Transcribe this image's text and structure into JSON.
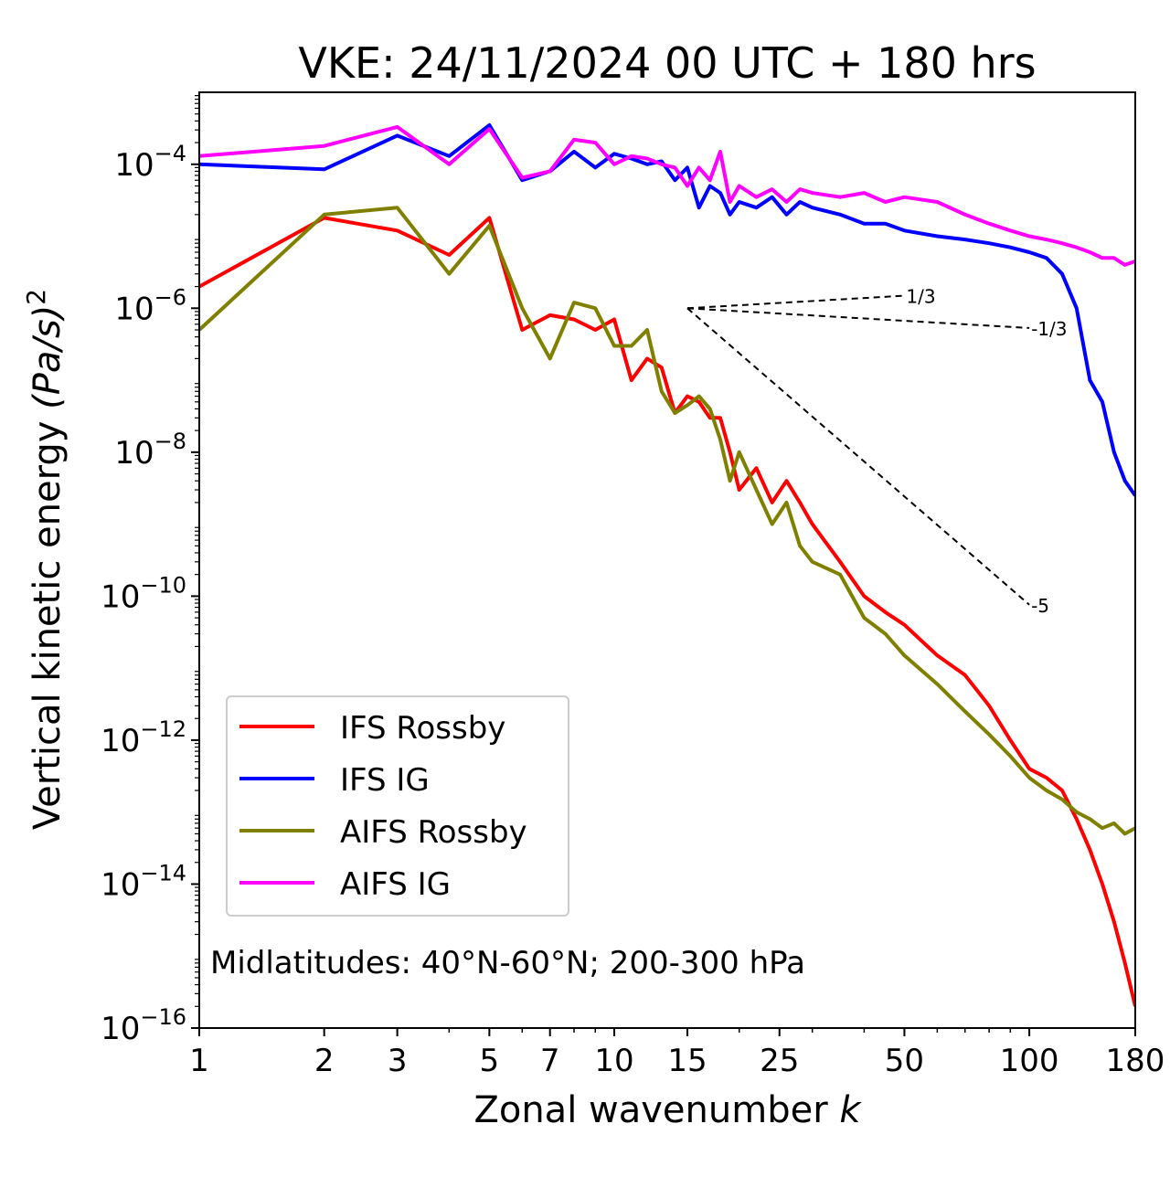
{
  "chart_data": {
    "type": "line",
    "title": "VKE: 24/11/2024 00 UTC + 180 hrs",
    "xlabel": "Zonal wavenumber",
    "xlabel_var": "k",
    "ylabel": "Vertical kinetic energy",
    "ylabel_unit": "(Pa/s)",
    "ylabel_exp": "2",
    "x_scale": "log",
    "y_scale": "log",
    "xlim": [
      1,
      180
    ],
    "ylim": [
      1e-16,
      0.001
    ],
    "x_ticks": [
      1,
      2,
      3,
      5,
      7,
      10,
      15,
      25,
      50,
      100,
      180
    ],
    "y_ticks": [
      {
        "value": 1e-16,
        "base": "10",
        "exp": "−16"
      },
      {
        "value": 1e-14,
        "base": "10",
        "exp": "−14"
      },
      {
        "value": 1e-12,
        "base": "10",
        "exp": "−12"
      },
      {
        "value": 1e-10,
        "base": "10",
        "exp": "−10"
      },
      {
        "value": 1e-08,
        "base": "10",
        "exp": "−8"
      },
      {
        "value": 1e-06,
        "base": "10",
        "exp": "−6"
      },
      {
        "value": 0.0001,
        "base": "10",
        "exp": "−4"
      }
    ],
    "annotation": "Midlatitudes: 40°N-60°N; 200-300 hPa",
    "legend_position": "lower-left",
    "reference_lines": [
      {
        "label": "1/3",
        "slope": 0.3333,
        "x_start": 15,
        "x_end": 50,
        "y_start": 1e-06
      },
      {
        "label": "-1/3",
        "slope": -0.3333,
        "x_start": 15,
        "x_end": 100,
        "y_start": 1e-06
      },
      {
        "label": "-5",
        "slope": -5,
        "x_start": 15,
        "x_end": 100,
        "y_start": 1e-06
      }
    ],
    "series": [
      {
        "name": "IFS Rossby",
        "color": "#ff0000",
        "x": [
          1,
          2,
          3,
          4,
          5,
          6,
          7,
          8,
          9,
          10,
          11,
          12,
          13,
          14,
          15,
          16,
          17,
          18,
          19,
          20,
          22,
          24,
          26,
          28,
          30,
          35,
          40,
          45,
          50,
          60,
          70,
          80,
          90,
          100,
          110,
          120,
          130,
          140,
          150,
          160,
          170,
          180
        ],
        "y": [
          2e-06,
          1.8e-05,
          1.2e-05,
          5.5e-06,
          1.8e-05,
          5e-07,
          8e-07,
          7e-07,
          5e-07,
          7e-07,
          1e-07,
          2e-07,
          1.5e-07,
          3.5e-08,
          6e-08,
          5e-08,
          3e-08,
          3e-08,
          1e-08,
          3e-09,
          6e-09,
          2e-09,
          4e-09,
          2e-09,
          1e-09,
          3e-10,
          1e-10,
          6e-11,
          4e-11,
          1.5e-11,
          8e-12,
          3e-12,
          1e-12,
          4e-13,
          3e-13,
          2e-13,
          8e-14,
          3e-14,
          1e-14,
          3e-15,
          8e-16,
          2e-16
        ]
      },
      {
        "name": "IFS IG",
        "color": "#0000ff",
        "x": [
          1,
          2,
          3,
          4,
          5,
          6,
          7,
          8,
          9,
          10,
          11,
          12,
          13,
          14,
          15,
          16,
          17,
          18,
          19,
          20,
          22,
          24,
          26,
          28,
          30,
          35,
          40,
          45,
          50,
          60,
          70,
          80,
          90,
          100,
          110,
          120,
          130,
          140,
          150,
          160,
          170,
          180
        ],
        "y": [
          0.0001,
          8.5e-05,
          0.00025,
          0.00013,
          0.00035,
          6e-05,
          8e-05,
          0.00015,
          9e-05,
          0.00014,
          0.00012,
          0.0001,
          0.00011,
          6e-05,
          9e-05,
          2.5e-05,
          5e-05,
          4e-05,
          2e-05,
          3e-05,
          2.5e-05,
          3.5e-05,
          2e-05,
          3e-05,
          2.5e-05,
          2e-05,
          1.5e-05,
          1.5e-05,
          1.2e-05,
          1e-05,
          9e-06,
          8e-06,
          7e-06,
          6e-06,
          5e-06,
          3e-06,
          1e-06,
          1e-07,
          5e-08,
          1e-08,
          4e-09,
          2.5e-09
        ]
      },
      {
        "name": "AIFS Rossby",
        "color": "#808000",
        "x": [
          1,
          2,
          3,
          4,
          5,
          6,
          7,
          8,
          9,
          10,
          11,
          12,
          13,
          14,
          15,
          16,
          17,
          18,
          19,
          20,
          22,
          24,
          26,
          28,
          30,
          35,
          40,
          45,
          50,
          60,
          70,
          80,
          90,
          100,
          110,
          120,
          130,
          140,
          150,
          160,
          170,
          180
        ],
        "y": [
          5e-07,
          2e-05,
          2.5e-05,
          3e-06,
          1.4e-05,
          1e-06,
          2e-07,
          1.2e-06,
          1e-06,
          3e-07,
          3e-07,
          5e-07,
          7e-08,
          3.5e-08,
          4.5e-08,
          6e-08,
          4e-08,
          1.5e-08,
          4e-09,
          1e-08,
          3e-09,
          1e-09,
          2e-09,
          5e-10,
          3e-10,
          2e-10,
          5e-11,
          3e-11,
          1.5e-11,
          6e-12,
          2.5e-12,
          1.2e-12,
          6e-13,
          3e-13,
          2e-13,
          1.5e-13,
          1e-13,
          8e-14,
          6e-14,
          7e-14,
          5e-14,
          6e-14
        ]
      },
      {
        "name": "AIFS IG",
        "color": "#ff00ff",
        "x": [
          1,
          2,
          3,
          4,
          5,
          6,
          7,
          8,
          9,
          10,
          11,
          12,
          13,
          14,
          15,
          16,
          17,
          18,
          19,
          20,
          22,
          24,
          26,
          28,
          30,
          35,
          40,
          45,
          50,
          60,
          70,
          80,
          90,
          100,
          110,
          120,
          130,
          140,
          150,
          160,
          170,
          180
        ],
        "y": [
          0.00013,
          0.00018,
          0.00033,
          0.0001,
          0.00031,
          6.5e-05,
          8e-05,
          0.00022,
          0.0002,
          0.0001,
          0.00013,
          0.00012,
          0.0001,
          9e-05,
          5e-05,
          9e-05,
          6e-05,
          0.00015,
          3e-05,
          5e-05,
          3.5e-05,
          4.5e-05,
          3e-05,
          4.5e-05,
          4e-05,
          3.5e-05,
          4e-05,
          3e-05,
          3.5e-05,
          3e-05,
          2e-05,
          1.5e-05,
          1.2e-05,
          1e-05,
          9e-06,
          8e-06,
          7e-06,
          6e-06,
          5e-06,
          5e-06,
          4e-06,
          4.5e-06
        ]
      }
    ]
  }
}
